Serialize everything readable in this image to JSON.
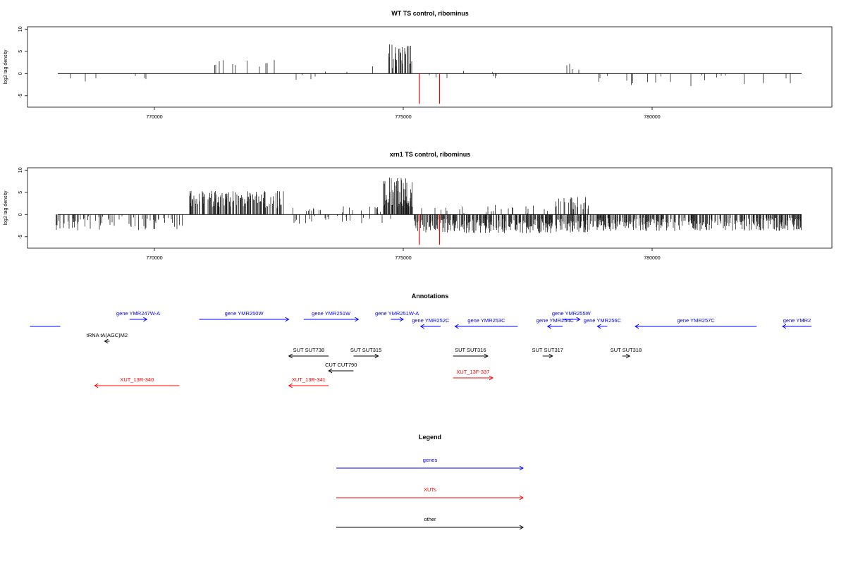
{
  "chart_data": [
    {
      "type": "bar",
      "title": "WT TS control, ribominus",
      "ylabel": "log2 tag density",
      "xlabel": "",
      "xlim": [
        767500,
        783200
      ],
      "ylim": [
        -7.5,
        10.5
      ],
      "xticks": [
        770000,
        775000,
        780000
      ],
      "yticks": [
        -5,
        0,
        5,
        10
      ],
      "grid": false,
      "series": [
        {
          "strand": "plus",
          "color": "#000000",
          "regions": [
            {
              "from": 770800,
              "to": 772500,
              "mean": 2.6,
              "amp": 1.4,
              "density": 0.05
            },
            {
              "from": 773000,
              "to": 773800,
              "mean": 0.9,
              "amp": 0.6,
              "density": 0.012
            },
            {
              "from": 773800,
              "to": 774500,
              "mean": 1.0,
              "amp": 1.2,
              "density": 0.015
            },
            {
              "from": 774700,
              "to": 775200,
              "mean": 4.0,
              "amp": 2.8,
              "density": 0.35
            },
            {
              "from": 775300,
              "to": 777200,
              "mean": 0.6,
              "amp": 0.5,
              "density": 0.008
            },
            {
              "from": 778200,
              "to": 778800,
              "mean": 1.7,
              "amp": 0.9,
              "density": 0.04
            }
          ]
        },
        {
          "strand": "minus",
          "color": "#000000",
          "regions": [
            {
              "from": 768000,
              "to": 770600,
              "mean": -1.0,
              "amp": 0.9,
              "density": 0.012
            },
            {
              "from": 772400,
              "to": 773300,
              "mean": -1.0,
              "amp": 0.9,
              "density": 0.03
            },
            {
              "from": 775300,
              "to": 777500,
              "mean": -0.6,
              "amp": 0.5,
              "density": 0.012
            },
            {
              "from": 778800,
              "to": 783000,
              "mean": -1.6,
              "amp": 1.3,
              "density": 0.03
            }
          ]
        },
        {
          "name": "",
          "color": "#ff0000",
          "spikes": [
            {
              "x": 775320,
              "y": -6.8
            },
            {
              "x": 775730,
              "y": -6.8
            }
          ]
        }
      ]
    },
    {
      "type": "bar",
      "title": "xrn1 TS control, ribominus",
      "ylabel": "log2 tag density",
      "xlabel": "",
      "xlim": [
        767500,
        783200
      ],
      "ylim": [
        -7.5,
        10.5
      ],
      "xticks": [
        770000,
        775000,
        780000
      ],
      "yticks": [
        -5,
        0,
        5,
        10
      ],
      "grid": false,
      "series": [
        {
          "strand": "plus",
          "color": "#000000",
          "regions": [
            {
              "from": 770700,
              "to": 772600,
              "mean": 3.4,
              "amp": 2.0,
              "density": 0.45
            },
            {
              "from": 772600,
              "to": 774600,
              "mean": 1.0,
              "amp": 0.9,
              "density": 0.06
            },
            {
              "from": 774600,
              "to": 775200,
              "mean": 5.0,
              "amp": 3.5,
              "density": 0.6
            },
            {
              "from": 775200,
              "to": 778000,
              "mean": 1.2,
              "amp": 1.0,
              "density": 0.07
            },
            {
              "from": 778000,
              "to": 778800,
              "mean": 2.5,
              "amp": 1.5,
              "density": 0.2
            }
          ]
        },
        {
          "strand": "minus",
          "color": "#000000",
          "regions": [
            {
              "from": 768000,
              "to": 770600,
              "mean": -2.0,
              "amp": 1.6,
              "density": 0.15
            },
            {
              "from": 772700,
              "to": 774800,
              "mean": -1.2,
              "amp": 0.9,
              "density": 0.07
            },
            {
              "from": 775200,
              "to": 778800,
              "mean": -2.6,
              "amp": 1.6,
              "density": 0.5
            },
            {
              "from": 778800,
              "to": 783000,
              "mean": -2.2,
              "amp": 1.5,
              "density": 0.4
            }
          ]
        },
        {
          "name": "",
          "color": "#ff0000",
          "spikes": [
            {
              "x": 775320,
              "y": -6.8
            },
            {
              "x": 775730,
              "y": -6.8
            }
          ]
        }
      ]
    }
  ],
  "annotations": {
    "title": "Annotations",
    "colors": {
      "gene": "#0000ff",
      "xut": "#ff0000",
      "other": "#000000"
    },
    "features": [
      {
        "kind": "gene",
        "name": "",
        "dir": "none",
        "start": 767500,
        "end": 768110,
        "lane": 2
      },
      {
        "kind": "gene",
        "name": "gene YMR247W-A",
        "dir": "right",
        "start": 769500,
        "end": 769850,
        "lane": 1
      },
      {
        "kind": "gene",
        "name": "gene YMR250W",
        "dir": "right",
        "start": 770900,
        "end": 772700,
        "lane": 1
      },
      {
        "kind": "gene",
        "name": "gene YMR251W",
        "dir": "right",
        "start": 773000,
        "end": 774100,
        "lane": 1
      },
      {
        "kind": "gene",
        "name": "gene YMR251W-A",
        "dir": "right",
        "start": 774750,
        "end": 775000,
        "lane": 1
      },
      {
        "kind": "gene",
        "name": "gene YMR252C",
        "dir": "left",
        "start": 775350,
        "end": 775750,
        "lane": 2
      },
      {
        "kind": "gene",
        "name": "gene YMR253C",
        "dir": "left",
        "start": 776040,
        "end": 777300,
        "lane": 2
      },
      {
        "kind": "gene",
        "name": "gene YMR254C",
        "dir": "left",
        "start": 777900,
        "end": 778200,
        "lane": 2
      },
      {
        "kind": "gene",
        "name": "gene YMR255W",
        "dir": "right",
        "start": 778200,
        "end": 778550,
        "lane": 1
      },
      {
        "kind": "gene",
        "name": "gene YMR256C",
        "dir": "left",
        "start": 778900,
        "end": 779100,
        "lane": 2
      },
      {
        "kind": "gene",
        "name": "gene YMR257C",
        "dir": "left",
        "start": 779660,
        "end": 782100,
        "lane": 2
      },
      {
        "kind": "gene",
        "name": "gene YMR2",
        "dir": "left",
        "start": 782620,
        "end": 783200,
        "lane": 2
      },
      {
        "kind": "other",
        "name": "tRNA tA(AGC)M2",
        "dir": "left",
        "start": 769000,
        "end": 769100,
        "lane": 3
      },
      {
        "kind": "other",
        "name": "SUT SUT738",
        "dir": "left",
        "start": 772700,
        "end": 773500,
        "lane": 4
      },
      {
        "kind": "other",
        "name": "SUT SUT315",
        "dir": "right",
        "start": 774000,
        "end": 774500,
        "lane": 4
      },
      {
        "kind": "other",
        "name": "SUT SUT316",
        "dir": "right",
        "start": 776000,
        "end": 776700,
        "lane": 4
      },
      {
        "kind": "other",
        "name": "SUT SUT317",
        "dir": "right",
        "start": 777800,
        "end": 778000,
        "lane": 4
      },
      {
        "kind": "other",
        "name": "SUT SUT318",
        "dir": "right",
        "start": 779400,
        "end": 779550,
        "lane": 4
      },
      {
        "kind": "other",
        "name": "CUT CUT790",
        "dir": "left",
        "start": 773500,
        "end": 774000,
        "lane": 5
      },
      {
        "kind": "xut",
        "name": "XUT_13R-340",
        "dir": "left",
        "start": 768800,
        "end": 770500,
        "lane": 6
      },
      {
        "kind": "xut",
        "name": "XUT_13R-341",
        "dir": "left",
        "start": 772700,
        "end": 773500,
        "lane": 6
      },
      {
        "kind": "xut",
        "name": "XUT_13F-337",
        "dir": "right",
        "start": 776000,
        "end": 776800,
        "lane": 5.6
      }
    ]
  },
  "legend": {
    "title": "Legend",
    "entries": [
      {
        "label": "genes",
        "color": "#0000ff"
      },
      {
        "label": "XUTs",
        "color": "#ff0000"
      },
      {
        "label": "other",
        "color": "#000000"
      }
    ]
  }
}
